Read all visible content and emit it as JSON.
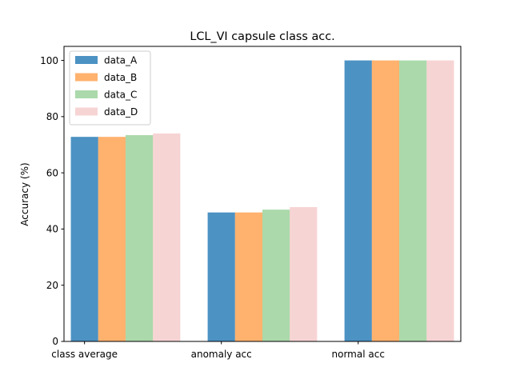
{
  "chart_data": {
    "type": "bar",
    "title": "LCL_VI capsule class acc.",
    "xlabel": "",
    "ylabel": "Accuracy (%)",
    "categories": [
      "class average",
      "anomaly acc",
      "normal acc"
    ],
    "ylim": [
      0,
      105
    ],
    "yticks": [
      0,
      20,
      40,
      60,
      80,
      100
    ],
    "grid": false,
    "legend_position": "top-left",
    "series": [
      {
        "name": "data_A",
        "color": "#1f77b4",
        "opacity": 0.8,
        "values": [
          72.8,
          45.9,
          100.0
        ]
      },
      {
        "name": "data_B",
        "color": "#ff7f0e",
        "opacity": 0.6,
        "values": [
          72.8,
          45.9,
          100.0
        ]
      },
      {
        "name": "data_C",
        "color": "#2ca02c",
        "opacity": 0.4,
        "values": [
          73.4,
          46.9,
          100.0
        ]
      },
      {
        "name": "data_D",
        "color": "#d62728",
        "opacity": 0.2,
        "values": [
          74.0,
          47.8,
          100.0
        ]
      }
    ]
  }
}
